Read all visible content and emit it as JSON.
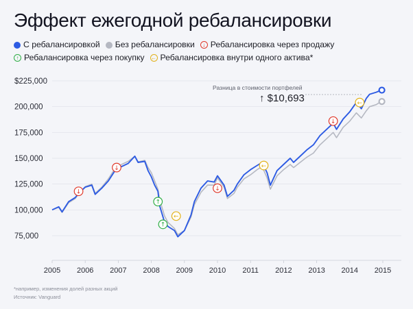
{
  "title": "Эффект ежегодной ребалансировки",
  "legend": {
    "with_rebalancing": "С ребалансировкой",
    "without_rebalancing": "Без ребалансировки",
    "sell": "Ребалансировка через продажу",
    "buy": "Ребалансировка через покупку",
    "internal": "Ребалансировка внутри одного актива*"
  },
  "colors": {
    "with": "#2d5be3",
    "without": "#b5b8c2",
    "sell": "#e0392b",
    "buy": "#2fae45",
    "internal": "#e2b21a",
    "grid": "#dfe1e8"
  },
  "annotation": {
    "label": "Разница в стоимости портфелей",
    "value": "↑ $10,693"
  },
  "footnote": "*например, изменения долей разных акций",
  "source": "Источник: Vanguard",
  "chart_data": {
    "type": "line",
    "xlim": [
      2005,
      2015
    ],
    "ylim": [
      62000,
      230000
    ],
    "xticks": [
      "2005",
      "2006",
      "2007",
      "2008",
      "2009",
      "2010",
      "2011",
      "2012",
      "2013",
      "2014",
      "2015"
    ],
    "yticks": [
      "$225,000",
      "200,000",
      "175,000",
      "150,000",
      "125,000",
      "100,000",
      "75,000"
    ],
    "ytick_values": [
      225000,
      200000,
      175000,
      150000,
      125000,
      100000,
      75000
    ],
    "series": [
      {
        "name": "С ребалансировкой",
        "x": [
          2005.0,
          2005.2,
          2005.3,
          2005.5,
          2005.7,
          2005.8,
          2006.0,
          2006.2,
          2006.3,
          2006.5,
          2006.7,
          2006.9,
          2007.1,
          2007.3,
          2007.5,
          2007.6,
          2007.8,
          2007.9,
          2008.0,
          2008.1,
          2008.2,
          2008.25,
          2008.4,
          2008.5,
          2008.6,
          2008.7,
          2008.8,
          2009.0,
          2009.2,
          2009.3,
          2009.5,
          2009.7,
          2009.9,
          2010.0,
          2010.2,
          2010.3,
          2010.5,
          2010.6,
          2010.8,
          2011.0,
          2011.2,
          2011.35,
          2011.5,
          2011.6,
          2011.8,
          2012.0,
          2012.2,
          2012.3,
          2012.5,
          2012.7,
          2012.9,
          2013.1,
          2013.3,
          2013.5,
          2013.6,
          2013.8,
          2014.0,
          2014.2,
          2014.35,
          2014.5,
          2014.6,
          2014.8,
          2014.95
        ],
        "values": [
          100000,
          103000,
          98000,
          108000,
          112000,
          116000,
          122000,
          124000,
          115000,
          121000,
          128000,
          138000,
          142000,
          145000,
          152000,
          146000,
          147000,
          138000,
          132000,
          124000,
          118000,
          104000,
          88000,
          84000,
          82000,
          80000,
          74000,
          80000,
          95000,
          108000,
          121000,
          128000,
          127000,
          133000,
          124000,
          113000,
          119000,
          125000,
          134000,
          139000,
          143000,
          146000,
          136000,
          124000,
          138000,
          144000,
          150000,
          146000,
          152000,
          158000,
          163000,
          172000,
          178000,
          184000,
          178000,
          188000,
          195000,
          204000,
          198000,
          208000,
          212000,
          214000,
          216000
        ]
      },
      {
        "name": "Без ребалансировки",
        "x": [
          2005.0,
          2005.2,
          2005.3,
          2005.5,
          2005.7,
          2005.8,
          2006.0,
          2006.2,
          2006.3,
          2006.5,
          2006.7,
          2006.9,
          2007.1,
          2007.3,
          2007.5,
          2007.6,
          2007.8,
          2007.9,
          2008.0,
          2008.1,
          2008.2,
          2008.25,
          2008.4,
          2008.5,
          2008.6,
          2008.7,
          2008.8,
          2009.0,
          2009.2,
          2009.3,
          2009.5,
          2009.7,
          2009.9,
          2010.0,
          2010.2,
          2010.3,
          2010.5,
          2010.6,
          2010.8,
          2011.0,
          2011.2,
          2011.35,
          2011.5,
          2011.6,
          2011.8,
          2012.0,
          2012.2,
          2012.3,
          2012.5,
          2012.7,
          2012.9,
          2013.1,
          2013.3,
          2013.5,
          2013.6,
          2013.8,
          2014.0,
          2014.2,
          2014.35,
          2014.5,
          2014.6,
          2014.8,
          2014.95
        ],
        "values": [
          100000,
          102500,
          97500,
          107000,
          111000,
          115500,
          122500,
          125000,
          116000,
          122000,
          130000,
          140000,
          144000,
          147000,
          152000,
          146500,
          148000,
          141000,
          136000,
          128000,
          120000,
          110000,
          94000,
          88000,
          85000,
          82000,
          76000,
          80000,
          93000,
          105000,
          117000,
          124000,
          124000,
          131000,
          122000,
          111000,
          116000,
          122000,
          130000,
          134000,
          139000,
          142000,
          131000,
          120000,
          133000,
          139000,
          144000,
          141000,
          146000,
          151000,
          155000,
          163000,
          169000,
          175000,
          170000,
          180000,
          186000,
          194000,
          189000,
          196000,
          200000,
          202000,
          205000
        ]
      }
    ],
    "markers": [
      {
        "type": "sell",
        "x": 2005.8,
        "y": 118000
      },
      {
        "type": "sell",
        "x": 2006.95,
        "y": 141000
      },
      {
        "type": "buy",
        "x": 2008.2,
        "y": 108000
      },
      {
        "type": "buy",
        "x": 2008.35,
        "y": 86000
      },
      {
        "type": "internal",
        "x": 2008.75,
        "y": 94000
      },
      {
        "type": "sell",
        "x": 2010.0,
        "y": 121000
      },
      {
        "type": "internal",
        "x": 2011.4,
        "y": 143000
      },
      {
        "type": "sell",
        "x": 2013.5,
        "y": 186000
      },
      {
        "type": "internal",
        "x": 2014.3,
        "y": 204000
      }
    ]
  }
}
